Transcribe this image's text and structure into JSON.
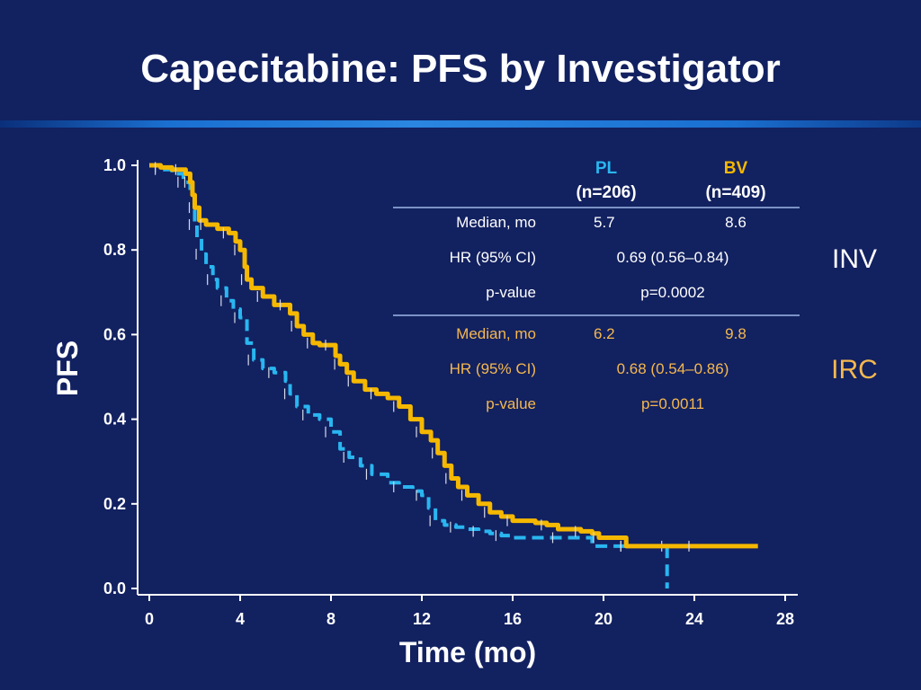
{
  "slide": {
    "title": "Capecitabine:  PFS by Investigator"
  },
  "colors": {
    "background": "#122160",
    "pl": "#29b6f0",
    "bv": "#f5b800",
    "irc_text": "#f5b84f",
    "white": "#ffffff"
  },
  "table": {
    "headers": [
      {
        "name": "PL",
        "n": "(n=206)"
      },
      {
        "name": "BV",
        "n": "(n=409)"
      }
    ],
    "inv": {
      "label": "INV",
      "rows": [
        {
          "label": "Median, mo",
          "pl": "5.7",
          "bv": "8.6"
        },
        {
          "label": "HR (95% CI)",
          "combined": "0.69 (0.56–0.84)"
        },
        {
          "label": "p-value",
          "combined": "p=0.0002"
        }
      ]
    },
    "irc": {
      "label": "IRC",
      "rows": [
        {
          "label": "Median, mo",
          "pl": "6.2",
          "bv": "9.8"
        },
        {
          "label": "HR (95% CI)",
          "combined": "0.68 (0.54–0.86)"
        },
        {
          "label": "p-value",
          "combined": "p=0.0011"
        }
      ]
    }
  },
  "chart_data": {
    "type": "line",
    "step": true,
    "xlabel": "Time (mo)",
    "ylabel": "PFS",
    "xlim": [
      0,
      28
    ],
    "ylim": [
      0,
      1
    ],
    "x_ticks": [
      "0",
      "4",
      "8",
      "12",
      "16",
      "20",
      "24",
      "28"
    ],
    "y_ticks": [
      "0.0",
      "0.2",
      "0.4",
      "0.6",
      "0.8",
      "1.0"
    ],
    "series": [
      {
        "name": "PL",
        "color": "#29b6f0",
        "dash": true,
        "points": [
          [
            0,
            1.0
          ],
          [
            0.5,
            0.99
          ],
          [
            1.0,
            0.98
          ],
          [
            1.5,
            0.96
          ],
          [
            1.8,
            0.93
          ],
          [
            2.0,
            0.86
          ],
          [
            2.1,
            0.83
          ],
          [
            2.3,
            0.79
          ],
          [
            2.5,
            0.76
          ],
          [
            2.8,
            0.73
          ],
          [
            3.0,
            0.71
          ],
          [
            3.4,
            0.68
          ],
          [
            3.7,
            0.66
          ],
          [
            4.0,
            0.64
          ],
          [
            4.3,
            0.58
          ],
          [
            4.6,
            0.54
          ],
          [
            5.0,
            0.52
          ],
          [
            5.5,
            0.51
          ],
          [
            6.0,
            0.49
          ],
          [
            6.2,
            0.46
          ],
          [
            6.5,
            0.43
          ],
          [
            7.0,
            0.41
          ],
          [
            7.5,
            0.4
          ],
          [
            8.0,
            0.37
          ],
          [
            8.4,
            0.33
          ],
          [
            8.8,
            0.31
          ],
          [
            9.3,
            0.29
          ],
          [
            9.8,
            0.27
          ],
          [
            10.5,
            0.25
          ],
          [
            11.0,
            0.24
          ],
          [
            11.6,
            0.23
          ],
          [
            12.0,
            0.22
          ],
          [
            12.3,
            0.19
          ],
          [
            12.6,
            0.16
          ],
          [
            13.0,
            0.15
          ],
          [
            13.5,
            0.145
          ],
          [
            14.0,
            0.14
          ],
          [
            14.5,
            0.135
          ],
          [
            15.0,
            0.13
          ],
          [
            15.5,
            0.125
          ],
          [
            16.0,
            0.12
          ],
          [
            18.0,
            0.12
          ],
          [
            19.5,
            0.1
          ],
          [
            21.0,
            0.1
          ],
          [
            22.0,
            0.1
          ],
          [
            22.8,
            0.1
          ],
          [
            22.8,
            0.0
          ]
        ]
      },
      {
        "name": "BV",
        "color": "#f5b800",
        "dash": false,
        "points": [
          [
            0,
            1.0
          ],
          [
            0.5,
            0.995
          ],
          [
            1.0,
            0.99
          ],
          [
            1.4,
            0.99
          ],
          [
            1.6,
            0.98
          ],
          [
            1.8,
            0.96
          ],
          [
            1.9,
            0.93
          ],
          [
            2.0,
            0.9
          ],
          [
            2.2,
            0.87
          ],
          [
            2.5,
            0.86
          ],
          [
            3.0,
            0.85
          ],
          [
            3.5,
            0.84
          ],
          [
            3.8,
            0.82
          ],
          [
            4.0,
            0.8
          ],
          [
            4.2,
            0.76
          ],
          [
            4.3,
            0.73
          ],
          [
            4.5,
            0.71
          ],
          [
            5.0,
            0.69
          ],
          [
            5.5,
            0.67
          ],
          [
            6.0,
            0.67
          ],
          [
            6.2,
            0.65
          ],
          [
            6.5,
            0.62
          ],
          [
            6.8,
            0.6
          ],
          [
            7.2,
            0.58
          ],
          [
            7.5,
            0.575
          ],
          [
            8.0,
            0.575
          ],
          [
            8.2,
            0.55
          ],
          [
            8.4,
            0.53
          ],
          [
            8.7,
            0.51
          ],
          [
            9.0,
            0.49
          ],
          [
            9.5,
            0.47
          ],
          [
            10.0,
            0.46
          ],
          [
            10.5,
            0.45
          ],
          [
            11.0,
            0.43
          ],
          [
            11.5,
            0.4
          ],
          [
            12.0,
            0.37
          ],
          [
            12.4,
            0.35
          ],
          [
            12.7,
            0.32
          ],
          [
            13.0,
            0.29
          ],
          [
            13.3,
            0.26
          ],
          [
            13.6,
            0.24
          ],
          [
            14.0,
            0.22
          ],
          [
            14.5,
            0.2
          ],
          [
            15.0,
            0.18
          ],
          [
            15.5,
            0.17
          ],
          [
            16.0,
            0.16
          ],
          [
            17.0,
            0.155
          ],
          [
            17.5,
            0.15
          ],
          [
            18.0,
            0.14
          ],
          [
            19.0,
            0.135
          ],
          [
            19.5,
            0.13
          ],
          [
            19.8,
            0.12
          ],
          [
            20.5,
            0.12
          ],
          [
            21.0,
            0.1
          ],
          [
            22.0,
            0.1
          ],
          [
            24.0,
            0.1
          ],
          [
            26.8,
            0.1
          ]
        ]
      }
    ]
  }
}
